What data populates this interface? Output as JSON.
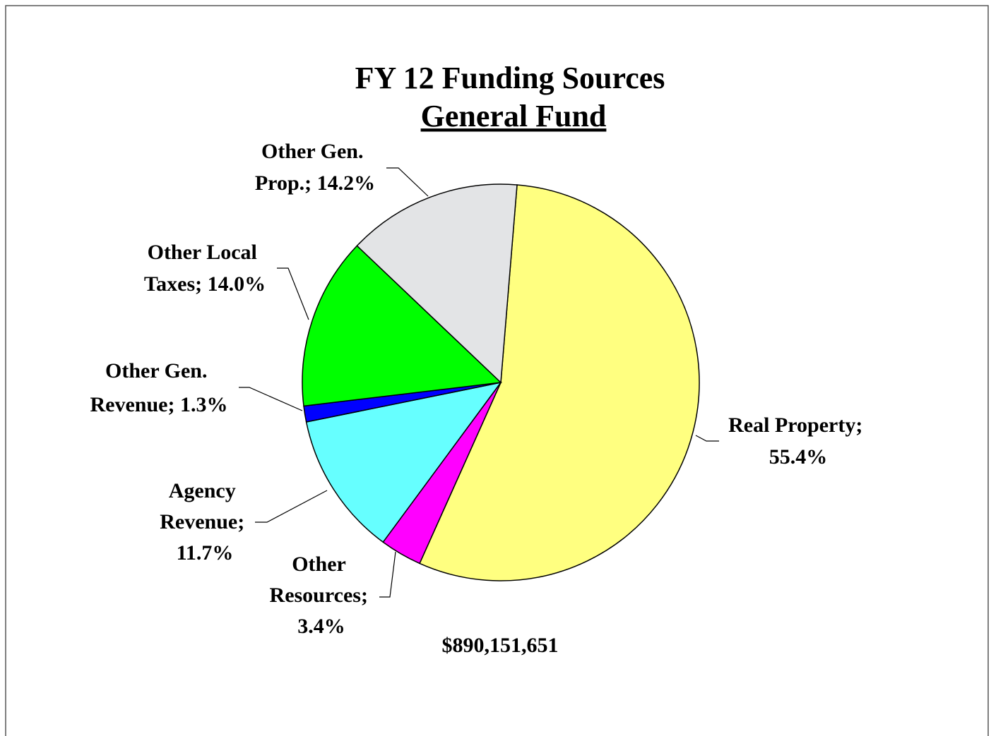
{
  "chart_data": {
    "type": "pie",
    "title": "FY 12 Funding Sources",
    "subtitle": "General Fund",
    "values": [
      55.4,
      3.4,
      11.7,
      1.3,
      14.0,
      14.2
    ],
    "value_labels": [
      "Real Property; 55.4%",
      "Other Resources; 3.4%",
      "Agency Revenue; 11.7%",
      "Other Gen. Revenue; 1.3%",
      "Other Local Taxes; 14.0%",
      "Other Gen. Prop.; 14.2%"
    ],
    "colors": [
      "#ffff80",
      "#ff00ff",
      "#66ffff",
      "#0000ff",
      "#00ff00",
      "#e3e4e6"
    ],
    "annotation": "$890,151,651"
  }
}
